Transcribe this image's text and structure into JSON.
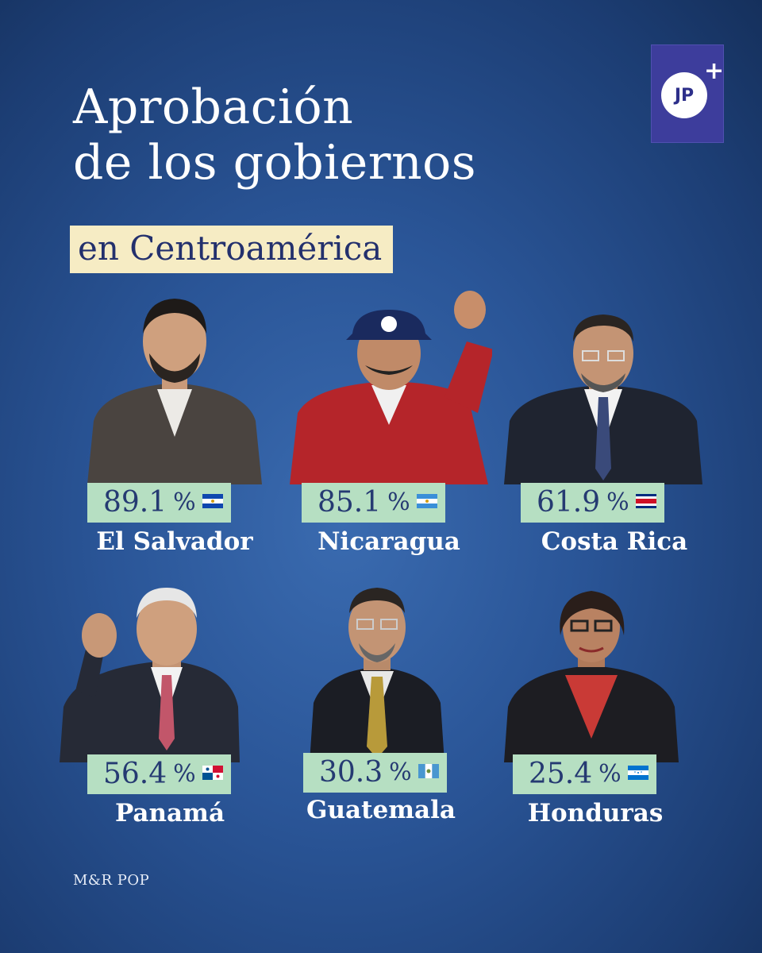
{
  "title_line1": "Aprobación",
  "title_line2": "de los gobiernos",
  "subtitle": "en Centroamérica",
  "logo": {
    "text": "JP",
    "plus": "+"
  },
  "unit": "%",
  "items": [
    {
      "value": "89.1",
      "country": "El Salvador",
      "flag": "el-salvador-flag-icon"
    },
    {
      "value": "85.1",
      "country": "Nicaragua",
      "flag": "nicaragua-flag-icon"
    },
    {
      "value": "61.9",
      "country": "Costa Rica",
      "flag": "costa-rica-flag-icon"
    },
    {
      "value": "56.4",
      "country": "Panamá",
      "flag": "panama-flag-icon"
    },
    {
      "value": "30.3",
      "country": "Guatemala",
      "flag": "guatemala-flag-icon"
    },
    {
      "value": "25.4",
      "country": "Honduras",
      "flag": "honduras-flag-icon"
    }
  ],
  "source": "M&R POP",
  "colors": {
    "background": "#2a5597",
    "subtitle_bg": "#f6ecc4",
    "value_bg": "#b6dfc2",
    "value_text": "#253a72",
    "logo_bg": "#3d3d9c"
  }
}
